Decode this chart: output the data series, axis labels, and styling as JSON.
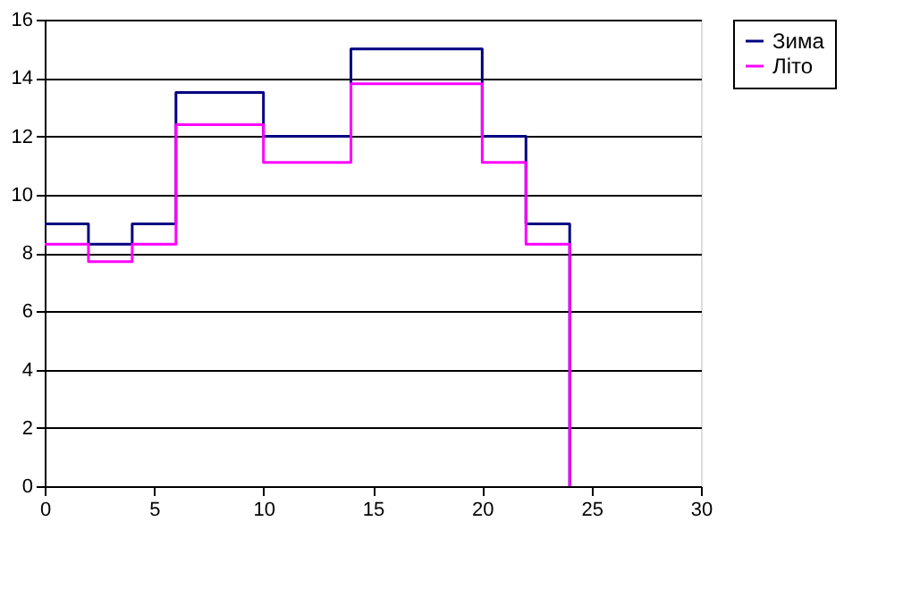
{
  "chart_data": {
    "type": "step",
    "x": [
      0,
      2,
      4,
      6,
      10,
      14,
      20,
      22,
      24
    ],
    "series": [
      {
        "name": "Зима",
        "color": "#000080",
        "values": [
          9,
          8.3,
          9,
          13.5,
          12,
          15,
          12,
          9,
          0
        ]
      },
      {
        "name": "Літо",
        "color": "#ff00ff",
        "values": [
          8.3,
          7.7,
          8.3,
          12.4,
          11.1,
          13.8,
          11.1,
          8.3,
          0
        ]
      }
    ],
    "xlim": [
      0,
      30
    ],
    "xticks": [
      0,
      5,
      10,
      15,
      20,
      25,
      30
    ],
    "ylim": [
      0,
      16
    ],
    "yticks": [
      0,
      2,
      4,
      6,
      8,
      10,
      12,
      14,
      16
    ],
    "grid": "y",
    "legend": "right",
    "marker": "none",
    "line_style": "solid"
  }
}
